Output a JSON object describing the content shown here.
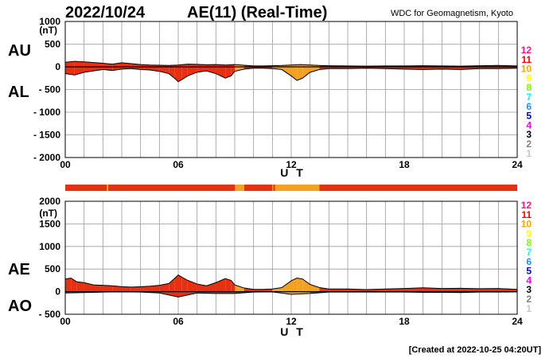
{
  "date": "2022/10/24",
  "title": "AE(11) (Real-Time)",
  "source": "WDC for Geomagnetism, Kyoto",
  "created": "[Created at 2022-10-25 04:20UT]",
  "labels": {
    "au": "AU",
    "al": "AL",
    "ae": "AE",
    "ao": "AO",
    "unit": "(nT)",
    "xlabel": "U T"
  },
  "legend": {
    "numbers": [
      "12",
      "11",
      "10",
      "9",
      "8",
      "7",
      "6",
      "5",
      "4",
      "3",
      "2",
      "1"
    ],
    "colors": [
      "#ff1493",
      "#ff0000",
      "#ffa500",
      "#ffff00",
      "#7cfc00",
      "#00ffff",
      "#1e90ff",
      "#0000cd",
      "#ee00ee",
      "#000000",
      "#808080",
      "#c8c8c8"
    ]
  },
  "bar_colors": {
    "11": "#e83010",
    "10": "#f4a020"
  },
  "chart_data": [
    {
      "id": "au-al",
      "type": "area",
      "ylabel": "(nT)",
      "xlabel": "U T",
      "xlim": [
        0,
        24
      ],
      "ylim": [
        -2000,
        1000
      ],
      "xticks": [
        0,
        6,
        12,
        18,
        24
      ],
      "xtick_labels": [
        "00",
        "06",
        "12",
        "18",
        "24"
      ],
      "yticks": [
        1000,
        500,
        0,
        -500,
        -1000,
        -1500,
        -2000
      ],
      "ytick_labels": [
        "1000",
        "500",
        "0",
        "- 500",
        "- 1000",
        "- 1500",
        "- 2000"
      ],
      "grid": true,
      "color_segments": [
        {
          "start": 0,
          "end": 9,
          "stations": 11
        },
        {
          "start": 9,
          "end": 9.5,
          "stations": 10
        },
        {
          "start": 9.5,
          "end": 11,
          "stations": 11
        },
        {
          "start": 11,
          "end": 11.6,
          "stations": 10
        },
        {
          "start": 11.6,
          "end": 13.5,
          "stations": 10
        },
        {
          "start": 13.5,
          "end": 24,
          "stations": 11
        }
      ],
      "series": [
        {
          "name": "AU",
          "x": [
            0,
            0.5,
            1,
            1.5,
            2,
            2.5,
            3,
            3.5,
            4,
            4.5,
            5,
            5.5,
            6,
            6.5,
            7,
            7.5,
            8,
            8.5,
            9,
            9.5,
            10,
            10.5,
            11,
            11.5,
            12,
            12.5,
            13,
            13.5,
            14,
            15,
            16,
            17,
            18,
            19,
            20,
            21,
            22,
            23,
            24
          ],
          "values": [
            100,
            120,
            110,
            95,
            80,
            60,
            90,
            70,
            50,
            40,
            35,
            30,
            40,
            60,
            55,
            45,
            50,
            40,
            50,
            35,
            20,
            20,
            25,
            30,
            40,
            50,
            40,
            30,
            25,
            20,
            15,
            20,
            20,
            25,
            20,
            15,
            25,
            30,
            20
          ]
        },
        {
          "name": "AL",
          "x": [
            0,
            0.5,
            1,
            1.5,
            2,
            2.5,
            3,
            3.5,
            4,
            4.5,
            5,
            5.5,
            5.8,
            6,
            6.2,
            6.5,
            7,
            7.5,
            8,
            8.5,
            8.8,
            9,
            9.5,
            10,
            10.5,
            11,
            11.5,
            12,
            12.3,
            12.6,
            13,
            13.5,
            14,
            15,
            16,
            17,
            18,
            19,
            20,
            21,
            22,
            23,
            24
          ],
          "values": [
            -150,
            -180,
            -120,
            -90,
            -60,
            -80,
            -50,
            -40,
            -60,
            -70,
            -100,
            -150,
            -250,
            -330,
            -280,
            -200,
            -120,
            -90,
            -150,
            -250,
            -200,
            -100,
            -50,
            -30,
            -30,
            -40,
            -60,
            -200,
            -300,
            -250,
            -120,
            -60,
            -40,
            -40,
            -30,
            -40,
            -50,
            -60,
            -50,
            -60,
            -40,
            -40,
            -30
          ]
        }
      ]
    },
    {
      "id": "ae-ao",
      "type": "area",
      "ylabel": "(nT)",
      "xlabel": "U T",
      "xlim": [
        0,
        24
      ],
      "ylim": [
        -500,
        2000
      ],
      "xticks": [
        0,
        6,
        12,
        18,
        24
      ],
      "xtick_labels": [
        "00",
        "06",
        "12",
        "18",
        "24"
      ],
      "yticks": [
        2000,
        1500,
        1000,
        500,
        0,
        -500
      ],
      "ytick_labels": [
        "2000",
        "1500",
        "1000",
        "500",
        "0",
        "- 500"
      ],
      "grid": true,
      "series": [
        {
          "name": "AE",
          "x": [
            0,
            0.3,
            0.6,
            1,
            1.5,
            2,
            2.5,
            3,
            3.5,
            4,
            4.5,
            5,
            5.5,
            5.8,
            6,
            6.2,
            6.5,
            7,
            7.5,
            8,
            8.5,
            8.8,
            9,
            9.5,
            10,
            10.5,
            11,
            11.5,
            12,
            12.3,
            12.6,
            13,
            13.5,
            14,
            15,
            16,
            17,
            18,
            19,
            20,
            21,
            22,
            23,
            24
          ],
          "values": [
            280,
            300,
            220,
            200,
            150,
            140,
            130,
            110,
            100,
            110,
            120,
            140,
            180,
            290,
            370,
            320,
            250,
            170,
            130,
            200,
            290,
            250,
            150,
            80,
            50,
            50,
            60,
            90,
            240,
            300,
            280,
            160,
            90,
            60,
            60,
            45,
            60,
            70,
            85,
            70,
            75,
            65,
            70,
            50
          ]
        },
        {
          "name": "AO",
          "x": [
            0,
            1,
            2,
            3,
            4,
            5,
            6,
            7,
            8,
            9,
            10,
            11,
            12,
            13,
            14,
            15,
            16,
            17,
            18,
            19,
            20,
            21,
            22,
            23,
            24
          ],
          "values": [
            -30,
            -20,
            -10,
            -5,
            -10,
            -30,
            -120,
            -30,
            -40,
            -40,
            -10,
            -5,
            -60,
            -40,
            -10,
            -10,
            -10,
            -10,
            -10,
            -15,
            -15,
            -20,
            -10,
            -10,
            -5
          ]
        }
      ]
    }
  ]
}
